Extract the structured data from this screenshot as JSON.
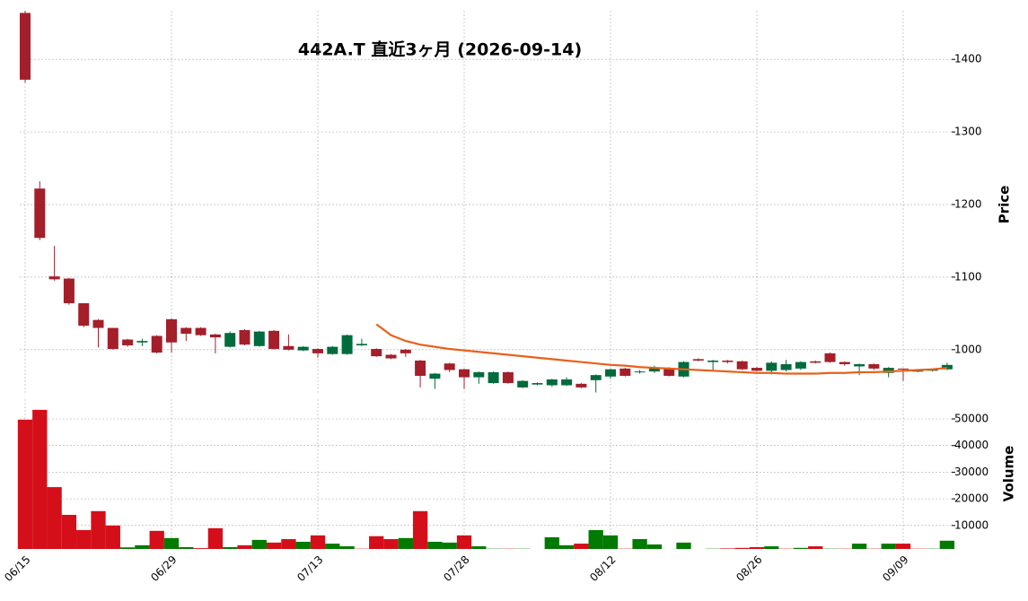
{
  "chart_data": {
    "type": "candlestick",
    "title": "442A.T  直近3ヶ月 (2026-09-14)",
    "ylabel": "Price",
    "y2label": "Volume",
    "categories": [
      "06/15",
      null,
      null,
      null,
      null,
      null,
      null,
      null,
      null,
      null,
      "06/29",
      null,
      null,
      null,
      null,
      null,
      null,
      null,
      null,
      null,
      "07/13",
      null,
      null,
      null,
      null,
      null,
      null,
      null,
      null,
      null,
      "07/28",
      null,
      null,
      null,
      null,
      null,
      null,
      null,
      null,
      null,
      "08/12",
      null,
      null,
      null,
      null,
      null,
      null,
      null,
      null,
      null,
      "08/26",
      null,
      null,
      null,
      null,
      null,
      null,
      null,
      null,
      null,
      "09/09",
      null,
      null,
      null
    ],
    "open": [
      1464,
      1222,
      1101,
      1098,
      1064,
      1041,
      1030,
      1014,
      1010,
      1019,
      1042,
      1030,
      1030,
      1021,
      1004,
      1027,
      1005,
      1026,
      1005,
      999,
      1001,
      994,
      994,
      1006,
      1001,
      993,
      1000,
      985,
      960,
      981,
      973,
      962,
      954,
      969,
      948,
      952,
      951,
      951,
      953,
      958,
      963,
      974,
      969,
      970,
      975,
      963,
      987,
      983,
      985,
      984,
      975,
      971,
      972,
      974,
      984,
      995,
      983,
      977,
      980,
      968,
      974,
      970,
      971,
      973
    ],
    "high": [
      1467,
      1232,
      1143,
      1099,
      1064,
      1042,
      1030,
      1015,
      1015,
      1020,
      1043,
      1031,
      1031,
      1022,
      1025,
      1028,
      1026,
      1027,
      1021,
      1005,
      1002,
      1005,
      1021,
      1015,
      1002,
      994,
      1001,
      986,
      968,
      982,
      974,
      970,
      970,
      970,
      958,
      955,
      960,
      962,
      954,
      966,
      974,
      975,
      972,
      978,
      976,
      984,
      988,
      986,
      986,
      985,
      976,
      984,
      986,
      984,
      985,
      996,
      984,
      981,
      981,
      976,
      974,
      972,
      974,
      982
    ],
    "low": [
      1368,
      1151,
      1095,
      1062,
      1031,
      1003,
      1000,
      1004,
      1005,
      995,
      996,
      1012,
      1019,
      995,
      1003,
      1006,
      1004,
      1000,
      999,
      998,
      989,
      993,
      993,
      1005,
      990,
      987,
      990,
      948,
      946,
      969,
      946,
      953,
      953,
      953,
      947,
      951,
      949,
      950,
      947,
      941,
      960,
      963,
      967,
      968,
      963,
      962,
      984,
      970,
      981,
      972,
      970,
      966,
      970,
      972,
      981,
      982,
      978,
      965,
      972,
      962,
      957,
      969,
      970,
      972
    ],
    "close": [
      1372,
      1154,
      1097,
      1064,
      1033,
      1030,
      1001,
      1006,
      1012,
      996,
      1010,
      1022,
      1020,
      1017,
      1023,
      1007,
      1025,
      1001,
      1000,
      1004,
      995,
      1004,
      1020,
      1008,
      991,
      988,
      995,
      964,
      967,
      972,
      962,
      969,
      969,
      954,
      957,
      954,
      959,
      959,
      948,
      965,
      973,
      964,
      970,
      975,
      964,
      983,
      985,
      985,
      983,
      973,
      971,
      982,
      980,
      983,
      982,
      983,
      980,
      980,
      974,
      975,
      973,
      971,
      973,
      979
    ],
    "volume": [
      49700,
      53400,
      24400,
      14000,
      8300,
      15400,
      10000,
      1800,
      2600,
      8000,
      5300,
      1900,
      1500,
      9000,
      1900,
      2600,
      4600,
      3600,
      4900,
      3900,
      6300,
      3200,
      2200,
      1300,
      6000,
      4900,
      5300,
      15400,
      3900,
      3600,
      6300,
      2200,
      1300,
      1300,
      1300,
      1200,
      5600,
      2600,
      3200,
      8300,
      6300,
      1300,
      4900,
      2900,
      1200,
      3600,
      1200,
      1300,
      1400,
      1600,
      1900,
      2200,
      1300,
      1600,
      2200,
      1300,
      1300,
      3200,
      1300,
      3200,
      3200,
      1300,
      1300,
      4300
    ],
    "ma_values": [
      null,
      null,
      null,
      null,
      null,
      null,
      null,
      null,
      null,
      null,
      null,
      null,
      null,
      null,
      null,
      null,
      null,
      null,
      null,
      null,
      null,
      null,
      null,
      null,
      1035,
      1020,
      1012,
      1007,
      1004,
      1001,
      999,
      997,
      995,
      993,
      991,
      989,
      987,
      985,
      983,
      981,
      979,
      978,
      976,
      975,
      974,
      973,
      972,
      971,
      970,
      969,
      968,
      968,
      967,
      967,
      967,
      968,
      968,
      969,
      969,
      970,
      971,
      972,
      973,
      975
    ],
    "ylim": [
      938,
      1467
    ],
    "yticks": [
      1000,
      1100,
      1200,
      1300,
      1400
    ],
    "y2lim": [
      1200,
      57400
    ],
    "y2ticks": [
      10000,
      20000,
      30000,
      40000,
      50000
    ],
    "up_color": "#006b3c",
    "down_color": "#a31f2a",
    "volume_up_color": "#007a00",
    "volume_down_color": "#d40f19",
    "ma_color": "#e8601c",
    "grid": true
  }
}
